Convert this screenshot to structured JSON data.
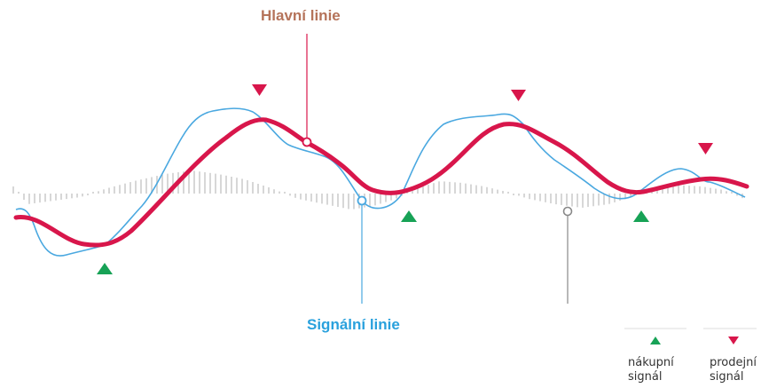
{
  "labels": {
    "main_line": "Hlavní linie",
    "signal_line": "Signální linie"
  },
  "legend": {
    "buy": {
      "line1": "nákupní",
      "line2": "signál"
    },
    "sell": {
      "line1": "prodejní",
      "line2": "signál"
    }
  },
  "colors": {
    "main_line": "#d8164b",
    "signal_line": "#4aa8e0",
    "main_label": "#b5735a",
    "signal_label": "#2aa1dd",
    "buy_marker": "#17a256",
    "sell_marker": "#d8164b",
    "histogram": "#d7d7d7",
    "callout_grey": "#888888"
  }
}
